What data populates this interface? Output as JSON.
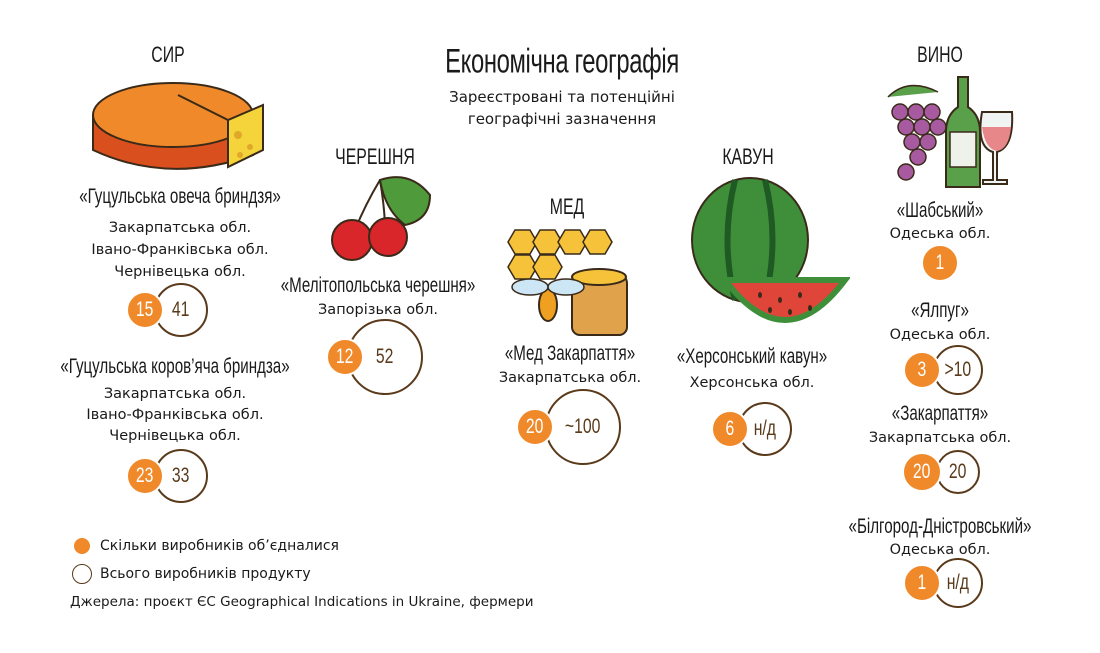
{
  "header": {
    "title": "Економічна географія",
    "subtitle": [
      "Зареєстровані та потенційні",
      "географічні зазначення"
    ]
  },
  "groups": [
    {
      "label": "СИР",
      "items": [
        {
          "name": "«Гуцульська овеча бриндзя»",
          "regions": [
            "Закарпатська обл.",
            "Івано-Франківська обл.",
            "Чернівецька обл."
          ],
          "joined": 15,
          "total": 41
        },
        {
          "name": "«Гуцульська коров’яча бриндза»",
          "regions": [
            "Закарпатська обл.",
            "Івано-Франківська обл.",
            "Чернівецька обл."
          ],
          "joined": 23,
          "total": 33
        }
      ]
    },
    {
      "label": "ЧЕРЕШНЯ",
      "items": [
        {
          "name": "«Мелітопольська черешня»",
          "regions": [
            "Запорізька обл."
          ],
          "joined": 12,
          "total": 52
        }
      ]
    },
    {
      "label": "МЕД",
      "items": [
        {
          "name": "«Мед Закарпаття»",
          "regions": [
            "Закарпатська обл."
          ],
          "joined": 20,
          "total": "~100"
        }
      ]
    },
    {
      "label": "КАВУН",
      "items": [
        {
          "name": "«Херсонський кавун»",
          "regions": [
            "Херсонська обл."
          ],
          "joined": 6,
          "total": "н/д"
        }
      ]
    },
    {
      "label": "ВИНО",
      "items": [
        {
          "name": "«Шабський»",
          "regions": [
            "Одеська обл."
          ],
          "joined": 1
        },
        {
          "name": "«Ялпуг»",
          "regions": [
            "Одеська обл."
          ],
          "joined": 3,
          "total": ">10"
        },
        {
          "name": "«Закарпаття»",
          "regions": [
            "Закарпатська обл."
          ],
          "joined": 20,
          "total": 20
        },
        {
          "name": "«Білгород-Дністровський»",
          "regions": [
            "Одеська обл."
          ],
          "joined": 1,
          "total": "н/д"
        }
      ]
    }
  ],
  "legend": {
    "joined": "Скільки виробників об’єдналися",
    "total": "Всього виробників продукту"
  },
  "source": "Джерела: проєкт ЄС Geographical Indications in Ukraine, фермери"
}
